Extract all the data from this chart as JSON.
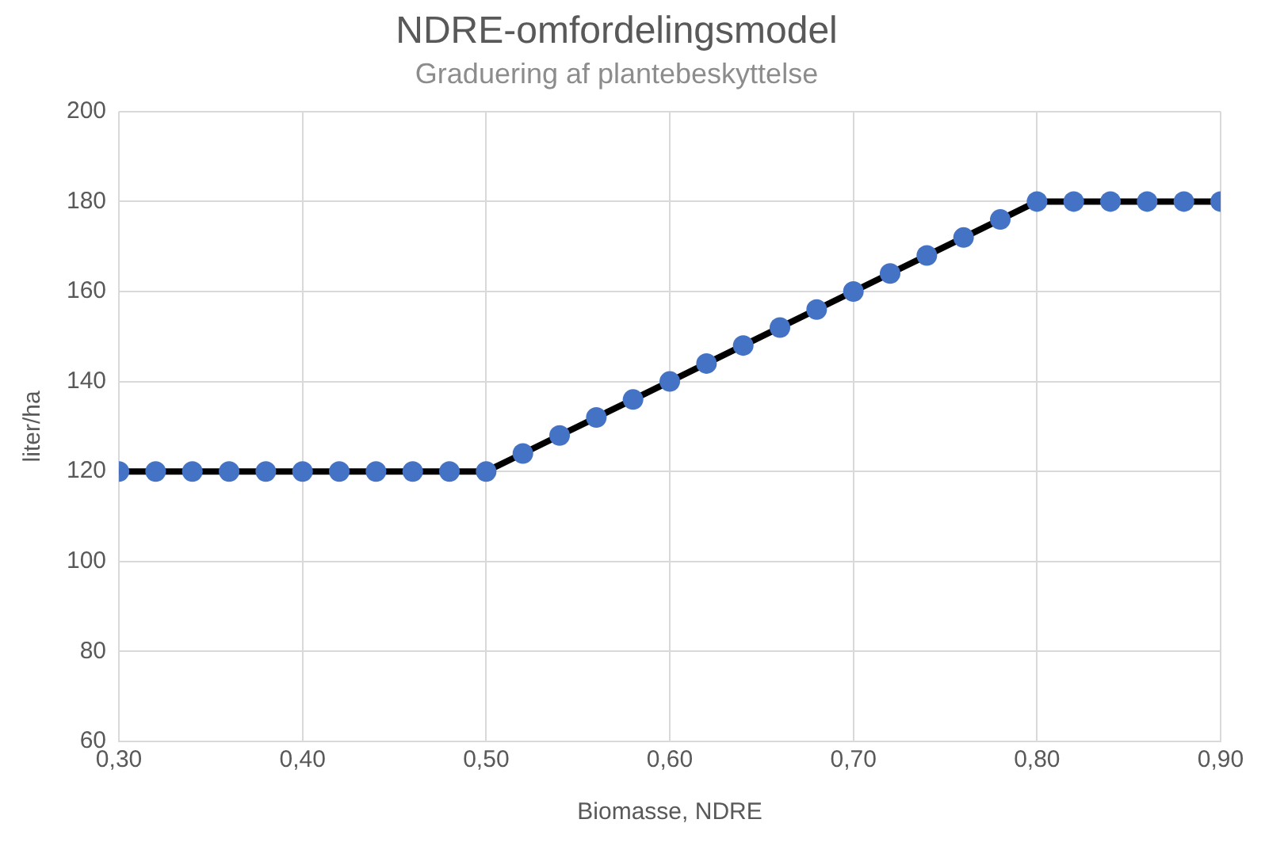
{
  "chart_data": {
    "type": "line",
    "title": "NDRE-omfordelingsmodel",
    "subtitle": "Graduering af plantebeskyttelse",
    "xlabel": "Biomasse, NDRE",
    "ylabel": "liter/ha",
    "x": [
      0.3,
      0.32,
      0.34,
      0.36,
      0.38,
      0.4,
      0.42,
      0.44,
      0.46,
      0.48,
      0.5,
      0.52,
      0.54,
      0.56,
      0.58,
      0.6,
      0.62,
      0.64,
      0.66,
      0.68,
      0.7,
      0.72,
      0.74,
      0.76,
      0.78,
      0.8,
      0.82,
      0.84,
      0.86,
      0.88,
      0.9
    ],
    "series": [
      {
        "color": "#4472c4",
        "values": [
          120,
          120,
          120,
          120,
          120,
          120,
          120,
          120,
          120,
          120,
          120,
          124,
          128,
          132,
          136,
          140,
          144,
          148,
          152,
          156,
          160,
          164,
          168,
          172,
          176,
          180,
          180,
          180,
          180,
          180,
          180
        ]
      }
    ],
    "xlim": [
      0.3,
      0.9
    ],
    "xticks": [
      {
        "value": 0.3,
        "label": "0,30"
      },
      {
        "value": 0.4,
        "label": "0,40"
      },
      {
        "value": 0.5,
        "label": "0,50"
      },
      {
        "value": 0.6,
        "label": "0,60"
      },
      {
        "value": 0.7,
        "label": "0,70"
      },
      {
        "value": 0.8,
        "label": "0,80"
      },
      {
        "value": 0.9,
        "label": "0,90"
      }
    ],
    "ylim": [
      60,
      200
    ],
    "yticks": [
      60,
      80,
      100,
      120,
      140,
      160,
      180,
      200
    ],
    "grid": true,
    "legend": false,
    "marker": "circle",
    "line_style": "solid"
  }
}
